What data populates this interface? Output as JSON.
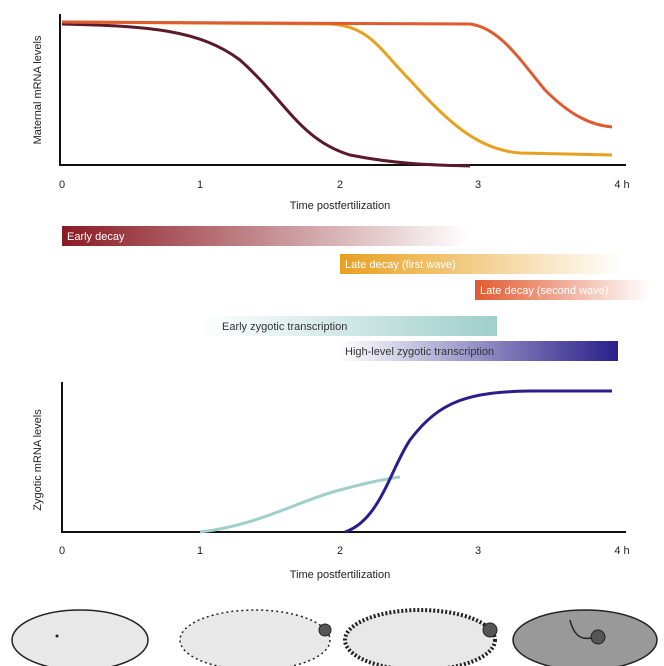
{
  "top_chart": {
    "y_label": "Maternal mRNA levels",
    "x_label": "Time postfertilization",
    "x_ticks": [
      "0",
      "1",
      "2",
      "3",
      "4 h"
    ]
  },
  "phases": [
    "Early decay",
    "Late decay (first wave)",
    "Late decay (second wave)",
    "Early zygotic transcription",
    "High-level zygotic transcription"
  ],
  "bottom_chart": {
    "y_label": "Zygotic mRNA levels",
    "x_label": "Time postfertilization",
    "x_ticks": [
      "0",
      "1",
      "2",
      "3",
      "4 h"
    ]
  }
}
